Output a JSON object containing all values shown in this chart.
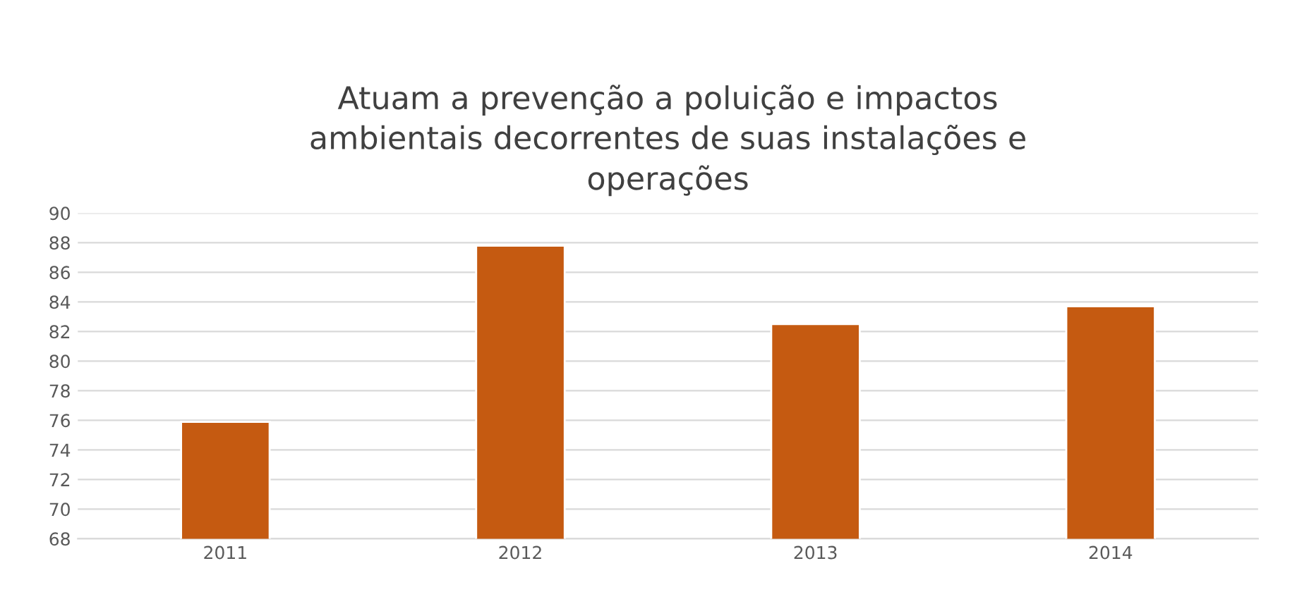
{
  "chart_data": {
    "type": "bar",
    "title": "Atuam a prevenção a poluição e impactos\nambientais decorrentes de suas instalações e\noperações",
    "categories": [
      "2011",
      "2012",
      "2013",
      "2014"
    ],
    "values": [
      75.9,
      87.8,
      82.5,
      83.7
    ],
    "color": "#c55a11",
    "ylim": [
      68,
      90
    ],
    "yticks": [
      68,
      70,
      72,
      74,
      76,
      78,
      80,
      82,
      84,
      86,
      88,
      90
    ],
    "grid": "y"
  }
}
